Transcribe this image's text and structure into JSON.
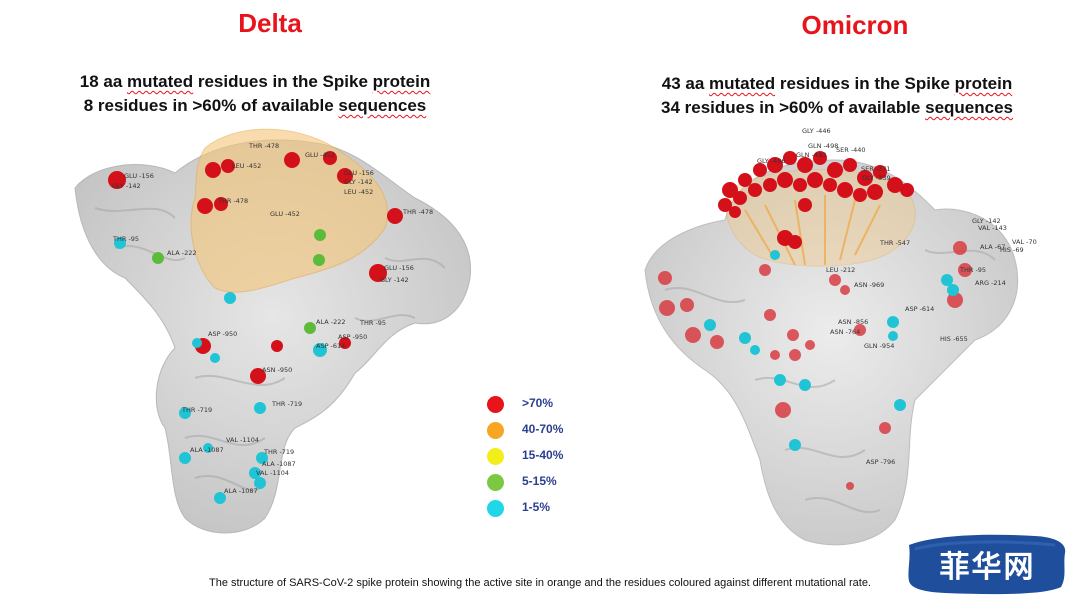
{
  "titles": {
    "left": "Delta",
    "right": "Omicron"
  },
  "delta": {
    "line1_prefix": "18 aa ",
    "line1_underlined": "mutated",
    "line1_suffix": " residues in the Spike ",
    "line1_underlined2": "protein",
    "line2_prefix": "8 residues in >60% of available ",
    "line2_underlined": "sequences",
    "labels": [
      "THR -478",
      "LEU -452",
      "GLU -452",
      "GLU -156",
      "GLY -142",
      "LEU -452",
      "GLY -142",
      "GLU -156",
      "THR -478",
      "THR -478",
      "GLU -452",
      "THR -95",
      "ALA -222",
      "GLU -156",
      "GLY -142",
      "ALA -222",
      "THR -95",
      "ASP -950",
      "ASP -950",
      "ASP -614",
      "ASN -950",
      "THR -719",
      "THR -719",
      "VAL -1104",
      "ALA -1087",
      "THR -719",
      "ALA -1087",
      "VAL -1104",
      "ALA -1087"
    ]
  },
  "omicron": {
    "line1_prefix": "43 aa ",
    "line1_underlined": "mutated",
    "line1_suffix": " residues in the Spike ",
    "line1_underlined2": "protein",
    "line2_prefix": "34 residues in >60% of available ",
    "line2_underlined": "sequences",
    "labels": [
      "GLY -446",
      "GLN -498",
      "SER -440",
      "GLN -493",
      "GLY -496",
      "SER -371",
      "GLY -339",
      "GLY -142",
      "VAL -143",
      "VAL -70",
      "ALA -67",
      "HIS -69",
      "THR -547",
      "THR -95",
      "LEU -212",
      "ASN -969",
      "ARG -214",
      "ASN -856",
      "ASP -614",
      "ASN -764",
      "GLN -954",
      "HIS -655",
      "ASP -796"
    ]
  },
  "legend": [
    {
      "label": ">70%",
      "color": "#e8141b"
    },
    {
      "label": "40-70%",
      "color": "#f6a623"
    },
    {
      "label": "15-40%",
      "color": "#f3ee1a"
    },
    {
      "label": "5-15%",
      "color": "#7cc843"
    },
    {
      "label": "1-5%",
      "color": "#1fd7e6"
    }
  ],
  "caption": "The structure of SARS-CoV-2 spike protein showing the active site in orange and the residues coloured against different mutational rate.",
  "watermark": "菲华网"
}
